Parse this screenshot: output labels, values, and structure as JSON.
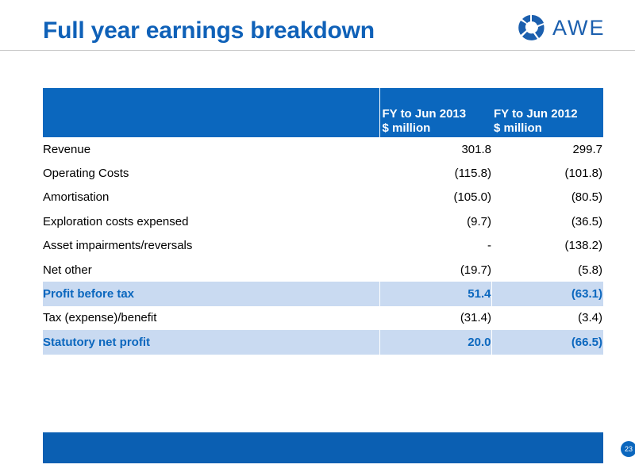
{
  "slide": {
    "title": "Full year earnings breakdown",
    "logo_text": "AWE",
    "page_number": "23",
    "colors": {
      "brand_blue": "#0b67be",
      "title_blue": "#0f61b8",
      "highlight_row": "#c9daf1",
      "footer_bar": "#0b5fb2"
    }
  },
  "table": {
    "headers": {
      "col_2013": {
        "line1": "FY to Jun 2013",
        "line2": "$ million"
      },
      "col_2012": {
        "line1": "FY to Jun 2012",
        "line2": "$ million"
      }
    },
    "rows": [
      {
        "label": "Revenue",
        "fy2013": "301.8",
        "fy2012": "299.7",
        "highlight": false
      },
      {
        "label": "Operating Costs",
        "fy2013": "(115.8)",
        "fy2012": "(101.8)",
        "highlight": false
      },
      {
        "label": "Amortisation",
        "fy2013": "(105.0)",
        "fy2012": "(80.5)",
        "highlight": false
      },
      {
        "label": "Exploration costs expensed",
        "fy2013": "(9.7)",
        "fy2012": "(36.5)",
        "highlight": false
      },
      {
        "label": "Asset impairments/reversals",
        "fy2013": "-",
        "fy2012": "(138.2)",
        "highlight": false
      },
      {
        "label": "Net other",
        "fy2013": "(19.7)",
        "fy2012": "(5.8)",
        "highlight": false
      },
      {
        "label": "Profit before tax",
        "fy2013": "51.4",
        "fy2012": "(63.1)",
        "highlight": true
      },
      {
        "label": "Tax (expense)/benefit",
        "fy2013": "(31.4)",
        "fy2012": "(3.4)",
        "highlight": false
      },
      {
        "label": "Statutory net profit",
        "fy2013": "20.0",
        "fy2012": "(66.5)",
        "highlight": true
      }
    ]
  }
}
